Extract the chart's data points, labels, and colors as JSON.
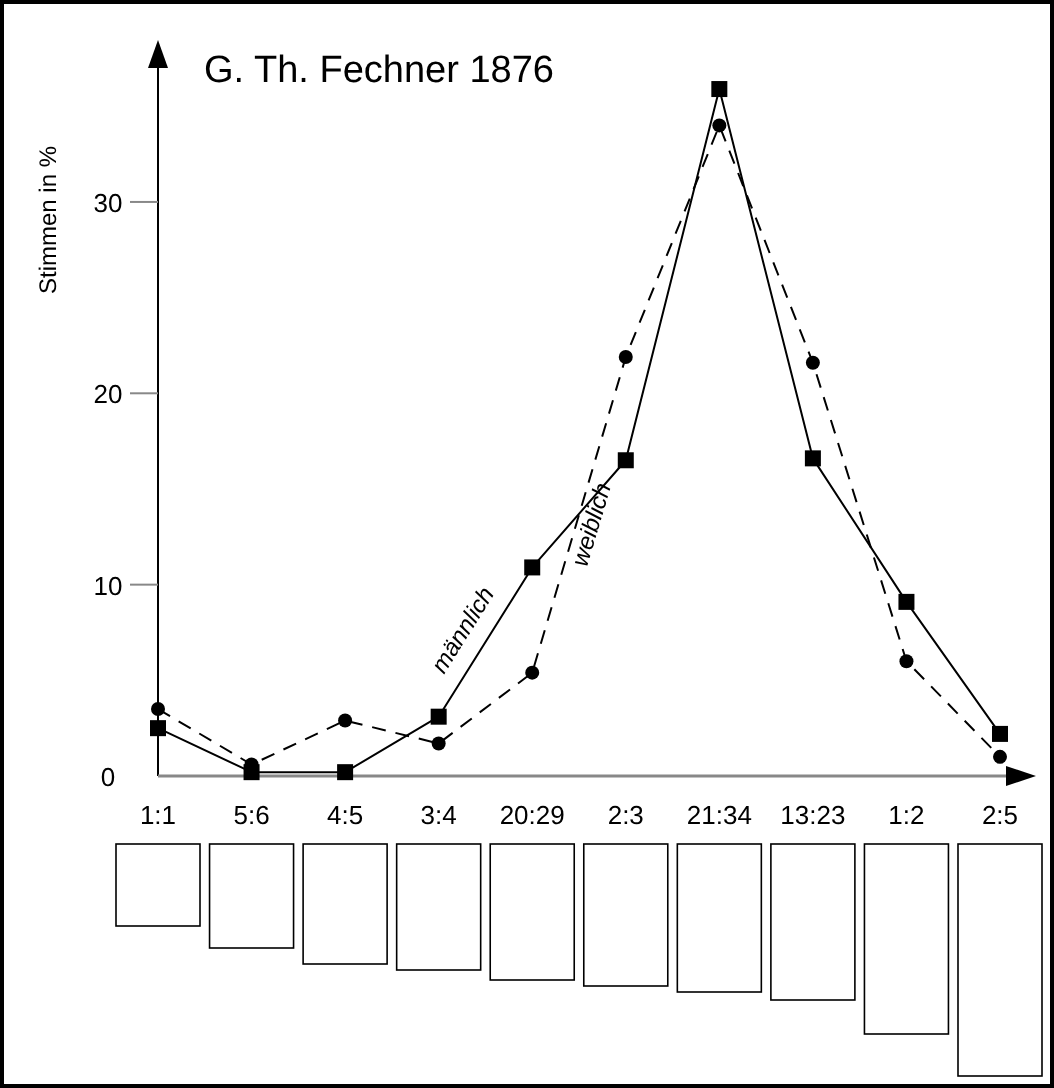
{
  "chart_data": {
    "type": "line",
    "title": "G. Th. Fechner 1876",
    "ylabel": "Stimmen in %",
    "categories": [
      "1:1",
      "5:6",
      "4:5",
      "3:4",
      "20:29",
      "2:3",
      "21:34",
      "13:23",
      "1:2",
      "2:5"
    ],
    "series": [
      {
        "name": "männlich",
        "color": "#000000",
        "line_style": "solid",
        "marker": "square",
        "values": [
          2.5,
          0.2,
          0.2,
          3.1,
          10.9,
          16.5,
          35.9,
          16.6,
          9.1,
          2.2
        ]
      },
      {
        "name": "weiblich",
        "color": "#000000",
        "line_style": "dashed",
        "marker": "circle",
        "values": [
          3.5,
          0.6,
          2.9,
          1.7,
          5.4,
          21.9,
          34.0,
          21.6,
          6.0,
          1.0
        ]
      }
    ],
    "ylim": [
      0,
      37
    ],
    "yticks": [
      0,
      10,
      20,
      30
    ],
    "grid": false
  }
}
